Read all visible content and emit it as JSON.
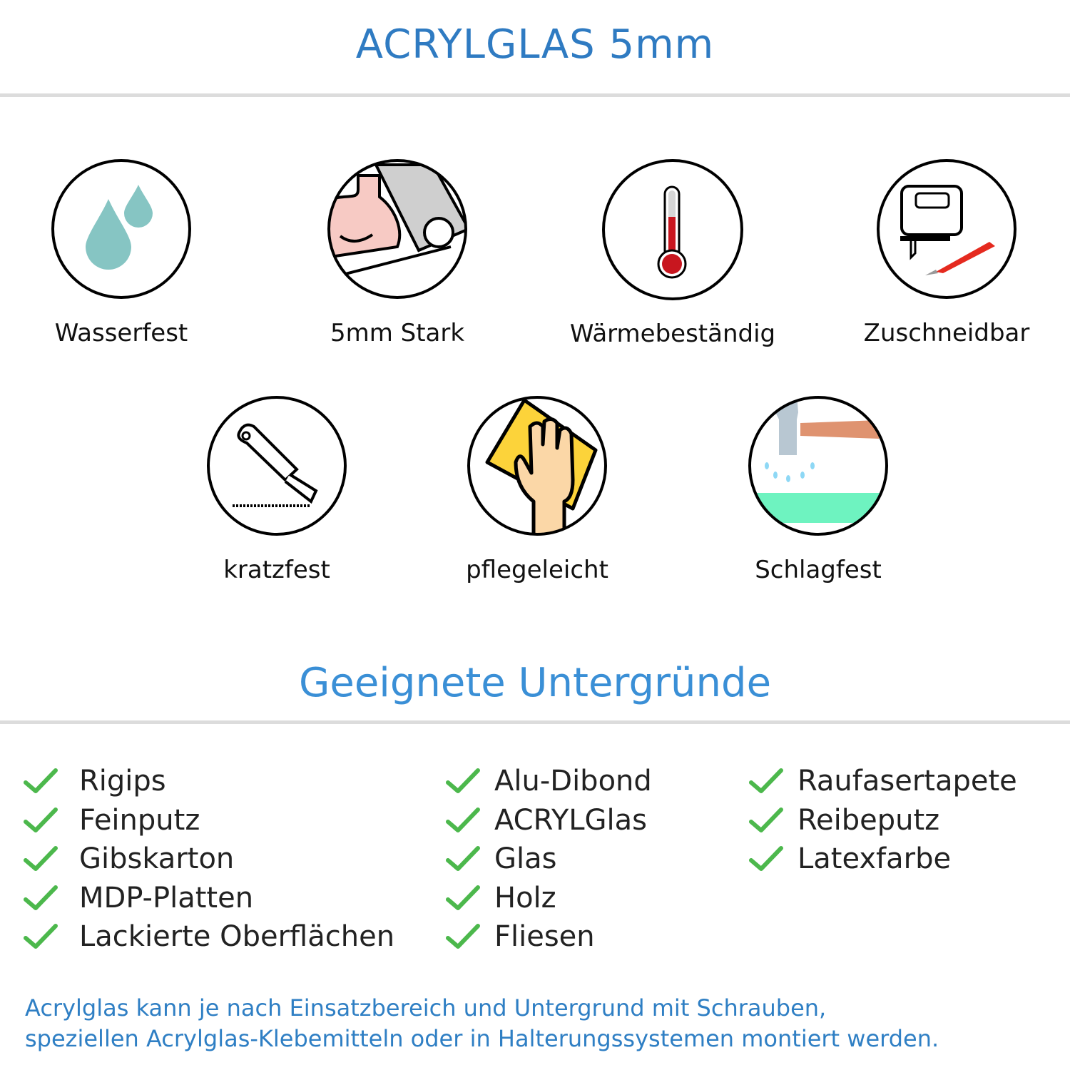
{
  "header": {
    "title": "ACRYLGLAS 5mm"
  },
  "features": [
    {
      "label": "Wasserfest",
      "icon": "water-drops-icon"
    },
    {
      "label": "5mm Stark",
      "icon": "strong-arm-icon"
    },
    {
      "label": "Wärmebeständig",
      "icon": "thermometer-icon"
    },
    {
      "label": "Zuschneidbar",
      "icon": "jigsaw-cutter-icon"
    },
    {
      "label": "kratzfest",
      "icon": "utility-knife-icon"
    },
    {
      "label": "pflegeleicht",
      "icon": "hand-cloth-icon"
    },
    {
      "label": "Schlagfest",
      "icon": "hammer-icon"
    }
  ],
  "surfaces": {
    "title": "Geeignete Untergründe",
    "check_color": "#4cb84c",
    "columns": [
      [
        "Rigips",
        "Feinputz",
        "Gibskarton",
        "MDP-Platten",
        "Lackierte Oberflächen"
      ],
      [
        "Alu-Dibond",
        "ACRYLGlas",
        "Glas",
        "Holz",
        "Fliesen"
      ],
      [
        "Raufasertapete",
        "Reibeputz",
        "Latexfarbe"
      ]
    ]
  },
  "footer": {
    "line1": "Acrylglas kann je nach Einsatzbereich und Untergrund mit Schrauben,",
    "line2": "speziellen Acrylglas-Klebemitteln oder in Halterungssystemen montiert werden."
  },
  "colors": {
    "title": "#2f7bc2",
    "subtitle": "#3a8fd6",
    "footer": "#2f7fc4"
  }
}
